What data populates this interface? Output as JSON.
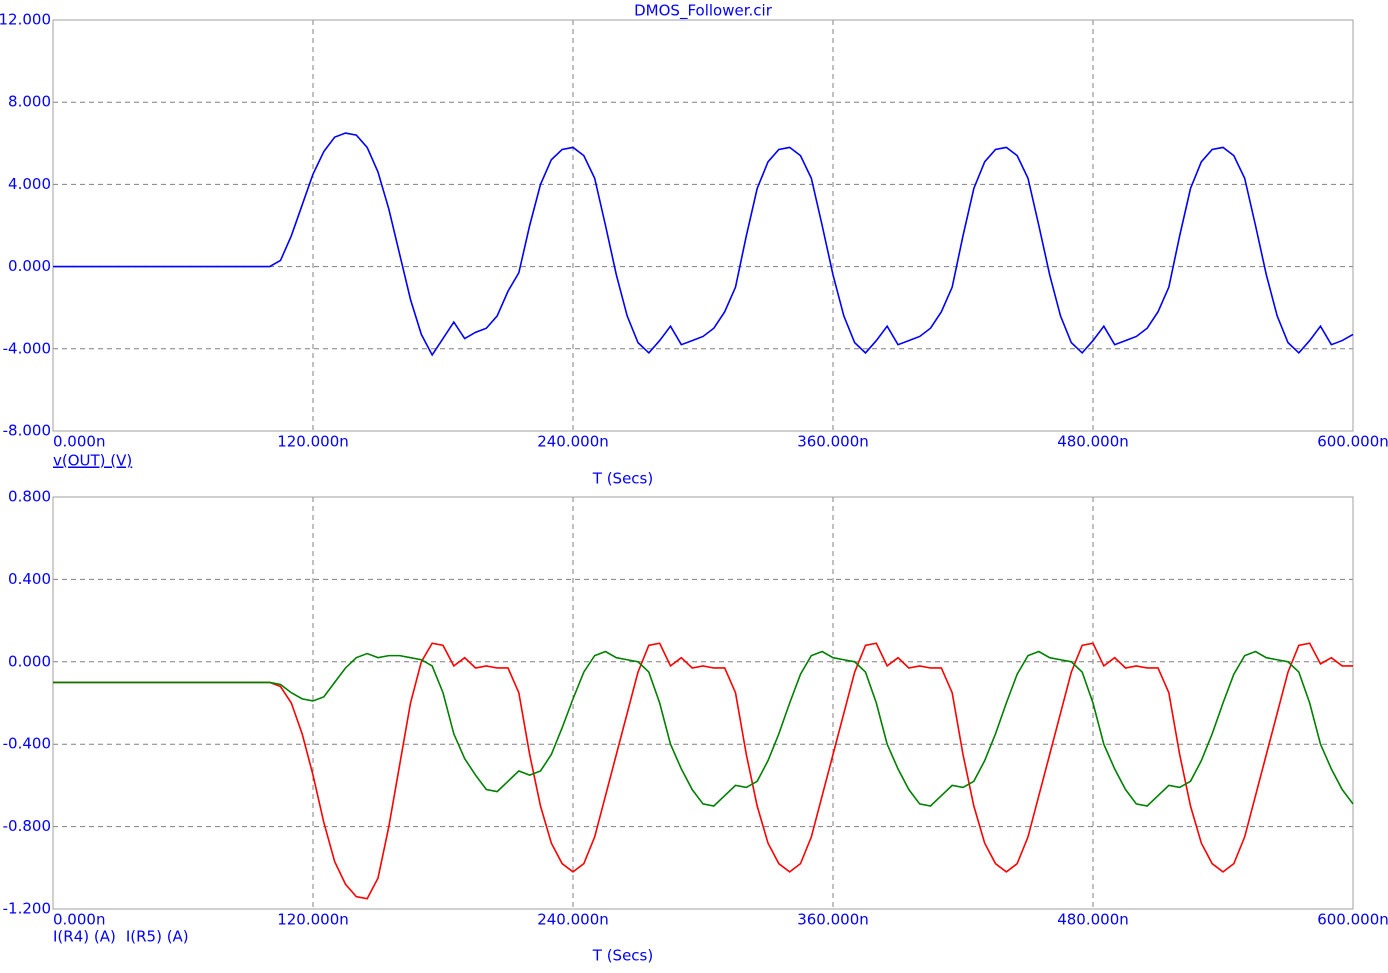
{
  "chart_data": [
    {
      "type": "line",
      "title": "DMOS_Follower.cir",
      "xlabel": "T (Secs)",
      "x": [
        0,
        5,
        10,
        15,
        20,
        25,
        30,
        35,
        40,
        45,
        50,
        55,
        60,
        65,
        70,
        75,
        80,
        85,
        90,
        95,
        100,
        105,
        110,
        115,
        120,
        125,
        130,
        135,
        140,
        145,
        150,
        155,
        160,
        165,
        170,
        175,
        180,
        185,
        190,
        195,
        200,
        205,
        210,
        215,
        220,
        225,
        230,
        235,
        240,
        245,
        250,
        255,
        260,
        265,
        270,
        275,
        280,
        285,
        290,
        295,
        300,
        305,
        310,
        315,
        320,
        325,
        330,
        335,
        340,
        345,
        350,
        355,
        360,
        365,
        370,
        375,
        380,
        385,
        390,
        395,
        400,
        405,
        410,
        415,
        420,
        425,
        430,
        435,
        440,
        445,
        450,
        455,
        460,
        465,
        470,
        475,
        480,
        485,
        490,
        495,
        500,
        505,
        510,
        515,
        520,
        525,
        530,
        535,
        540,
        545,
        550,
        555,
        560,
        565,
        570,
        575,
        580,
        585,
        590,
        595,
        600
      ],
      "xlim": [
        0,
        600
      ],
      "xticks": [
        {
          "value": 0,
          "label": "0.000n"
        },
        {
          "value": 120,
          "label": "120.000n"
        },
        {
          "value": 240,
          "label": "240.000n"
        },
        {
          "value": 360,
          "label": "360.000n"
        },
        {
          "value": 480,
          "label": "480.000n"
        },
        {
          "value": 600,
          "label": "600.000n"
        }
      ],
      "ylim": [
        -8,
        12
      ],
      "yticks": [
        {
          "value": 12,
          "label": "12.000"
        },
        {
          "value": 8,
          "label": "8.000"
        },
        {
          "value": 4,
          "label": "4.000"
        },
        {
          "value": 0,
          "label": "0.000"
        },
        {
          "value": -4,
          "label": "-4.000"
        },
        {
          "value": -8,
          "label": "-8.000"
        }
      ],
      "grid": true,
      "series": [
        {
          "name": "v(OUT) (V)",
          "color": "#0000ff",
          "values": [
            0,
            0,
            0,
            0,
            0,
            0,
            0,
            0,
            0,
            0,
            0,
            0,
            0,
            0,
            0,
            0,
            0,
            0,
            0,
            0,
            0,
            0.3,
            1.5,
            3.0,
            4.5,
            5.6,
            6.3,
            6.5,
            6.4,
            5.8,
            4.6,
            2.8,
            0.6,
            -1.6,
            -3.3,
            -4.3,
            -3.5,
            -2.7,
            -3.5,
            -3.2,
            -3.0,
            -2.4,
            -1.2,
            -0.3,
            2.0,
            4.0,
            5.2,
            5.7,
            5.8,
            5.4,
            4.3,
            2.0,
            -0.4,
            -2.4,
            -3.7,
            -4.2,
            -3.6,
            -2.9,
            -3.8,
            -3.6,
            -3.4,
            -3.0,
            -2.2,
            -1.0,
            1.5,
            3.8,
            5.1,
            5.7,
            5.8,
            5.4,
            4.3,
            2.0,
            -0.4,
            -2.4,
            -3.7,
            -4.2,
            -3.6,
            -2.9,
            -3.8,
            -3.6,
            -3.4,
            -3.0,
            -2.2,
            -1.0,
            1.5,
            3.8,
            5.1,
            5.7,
            5.8,
            5.4,
            4.3,
            2.0,
            -0.4,
            -2.4,
            -3.7,
            -4.2,
            -3.6,
            -2.9,
            -3.8,
            -3.6,
            -3.4,
            -3.0,
            -2.2,
            -1.0,
            1.5,
            3.8,
            5.1,
            5.7,
            5.8,
            5.4,
            4.3,
            2.0,
            -0.4,
            -2.4,
            -3.7,
            -4.2,
            -3.6,
            -2.9,
            -3.8,
            -3.6,
            -3.3
          ]
        }
      ]
    },
    {
      "type": "line",
      "xlabel": "T (Secs)",
      "x": [
        0,
        5,
        10,
        15,
        20,
        25,
        30,
        35,
        40,
        45,
        50,
        55,
        60,
        65,
        70,
        75,
        80,
        85,
        90,
        95,
        100,
        105,
        110,
        115,
        120,
        125,
        130,
        135,
        140,
        145,
        150,
        155,
        160,
        165,
        170,
        175,
        180,
        185,
        190,
        195,
        200,
        205,
        210,
        215,
        220,
        225,
        230,
        235,
        240,
        245,
        250,
        255,
        260,
        265,
        270,
        275,
        280,
        285,
        290,
        295,
        300,
        305,
        310,
        315,
        320,
        325,
        330,
        335,
        340,
        345,
        350,
        355,
        360,
        365,
        370,
        375,
        380,
        385,
        390,
        395,
        400,
        405,
        410,
        415,
        420,
        425,
        430,
        435,
        440,
        445,
        450,
        455,
        460,
        465,
        470,
        475,
        480,
        485,
        490,
        495,
        500,
        505,
        510,
        515,
        520,
        525,
        530,
        535,
        540,
        545,
        550,
        555,
        560,
        565,
        570,
        575,
        580,
        585,
        590,
        595,
        600
      ],
      "xlim": [
        0,
        600
      ],
      "xticks": [
        {
          "value": 0,
          "label": "0.000n"
        },
        {
          "value": 120,
          "label": "120.000n"
        },
        {
          "value": 240,
          "label": "240.000n"
        },
        {
          "value": 360,
          "label": "360.000n"
        },
        {
          "value": 480,
          "label": "480.000n"
        },
        {
          "value": 600,
          "label": "600.000n"
        }
      ],
      "ylim": [
        -1.2,
        0.8
      ],
      "yticks": [
        {
          "value": 0.8,
          "label": "0.800"
        },
        {
          "value": 0.4,
          "label": "0.400"
        },
        {
          "value": 0,
          "label": "0.000"
        },
        {
          "value": -0.4,
          "label": "-0.400"
        },
        {
          "value": -0.8,
          "label": "-0.800"
        },
        {
          "value": -1.2,
          "label": "-1.200"
        }
      ],
      "grid": true,
      "series": [
        {
          "name": "I(R4) (A)",
          "color": "#ff0000",
          "values": [
            -0.1,
            -0.1,
            -0.1,
            -0.1,
            -0.1,
            -0.1,
            -0.1,
            -0.1,
            -0.1,
            -0.1,
            -0.1,
            -0.1,
            -0.1,
            -0.1,
            -0.1,
            -0.1,
            -0.1,
            -0.1,
            -0.1,
            -0.1,
            -0.1,
            -0.12,
            -0.2,
            -0.35,
            -0.55,
            -0.78,
            -0.97,
            -1.08,
            -1.14,
            -1.15,
            -1.05,
            -0.8,
            -0.5,
            -0.2,
            0.0,
            0.09,
            0.08,
            -0.02,
            0.02,
            -0.03,
            -0.02,
            -0.03,
            -0.03,
            -0.15,
            -0.45,
            -0.7,
            -0.88,
            -0.98,
            -1.02,
            -0.98,
            -0.85,
            -0.65,
            -0.45,
            -0.25,
            -0.05,
            0.08,
            0.09,
            -0.02,
            0.02,
            -0.03,
            -0.02,
            -0.03,
            -0.03,
            -0.15,
            -0.45,
            -0.7,
            -0.88,
            -0.98,
            -1.02,
            -0.98,
            -0.85,
            -0.65,
            -0.45,
            -0.25,
            -0.05,
            0.08,
            0.09,
            -0.02,
            0.02,
            -0.03,
            -0.02,
            -0.03,
            -0.03,
            -0.15,
            -0.45,
            -0.7,
            -0.88,
            -0.98,
            -1.02,
            -0.98,
            -0.85,
            -0.65,
            -0.45,
            -0.25,
            -0.05,
            0.08,
            0.09,
            -0.02,
            0.02,
            -0.03,
            -0.02,
            -0.03,
            -0.03,
            -0.15,
            -0.45,
            -0.7,
            -0.88,
            -0.98,
            -1.02,
            -0.98,
            -0.85,
            -0.65,
            -0.45,
            -0.25,
            -0.05,
            0.08,
            0.09,
            -0.01,
            0.02,
            -0.02,
            -0.02
          ]
        },
        {
          "name": "I(R5) (A)",
          "color": "#008000",
          "values": [
            -0.1,
            -0.1,
            -0.1,
            -0.1,
            -0.1,
            -0.1,
            -0.1,
            -0.1,
            -0.1,
            -0.1,
            -0.1,
            -0.1,
            -0.1,
            -0.1,
            -0.1,
            -0.1,
            -0.1,
            -0.1,
            -0.1,
            -0.1,
            -0.1,
            -0.11,
            -0.15,
            -0.18,
            -0.19,
            -0.17,
            -0.1,
            -0.03,
            0.02,
            0.04,
            0.02,
            0.03,
            0.03,
            0.02,
            0.01,
            -0.02,
            -0.15,
            -0.35,
            -0.47,
            -0.55,
            -0.62,
            -0.63,
            -0.58,
            -0.53,
            -0.55,
            -0.53,
            -0.45,
            -0.32,
            -0.18,
            -0.05,
            0.03,
            0.05,
            0.02,
            0.01,
            0.0,
            -0.05,
            -0.2,
            -0.4,
            -0.52,
            -0.62,
            -0.69,
            -0.7,
            -0.65,
            -0.6,
            -0.61,
            -0.58,
            -0.48,
            -0.35,
            -0.2,
            -0.06,
            0.03,
            0.05,
            0.02,
            0.01,
            0.0,
            -0.05,
            -0.2,
            -0.4,
            -0.52,
            -0.62,
            -0.69,
            -0.7,
            -0.65,
            -0.6,
            -0.61,
            -0.58,
            -0.48,
            -0.35,
            -0.2,
            -0.06,
            0.03,
            0.05,
            0.02,
            0.01,
            0.0,
            -0.05,
            -0.2,
            -0.4,
            -0.52,
            -0.62,
            -0.69,
            -0.7,
            -0.65,
            -0.6,
            -0.61,
            -0.58,
            -0.48,
            -0.35,
            -0.2,
            -0.06,
            0.03,
            0.05,
            0.02,
            0.01,
            0.0,
            -0.05,
            -0.2,
            -0.4,
            -0.52,
            -0.62,
            -0.69
          ]
        }
      ]
    }
  ]
}
